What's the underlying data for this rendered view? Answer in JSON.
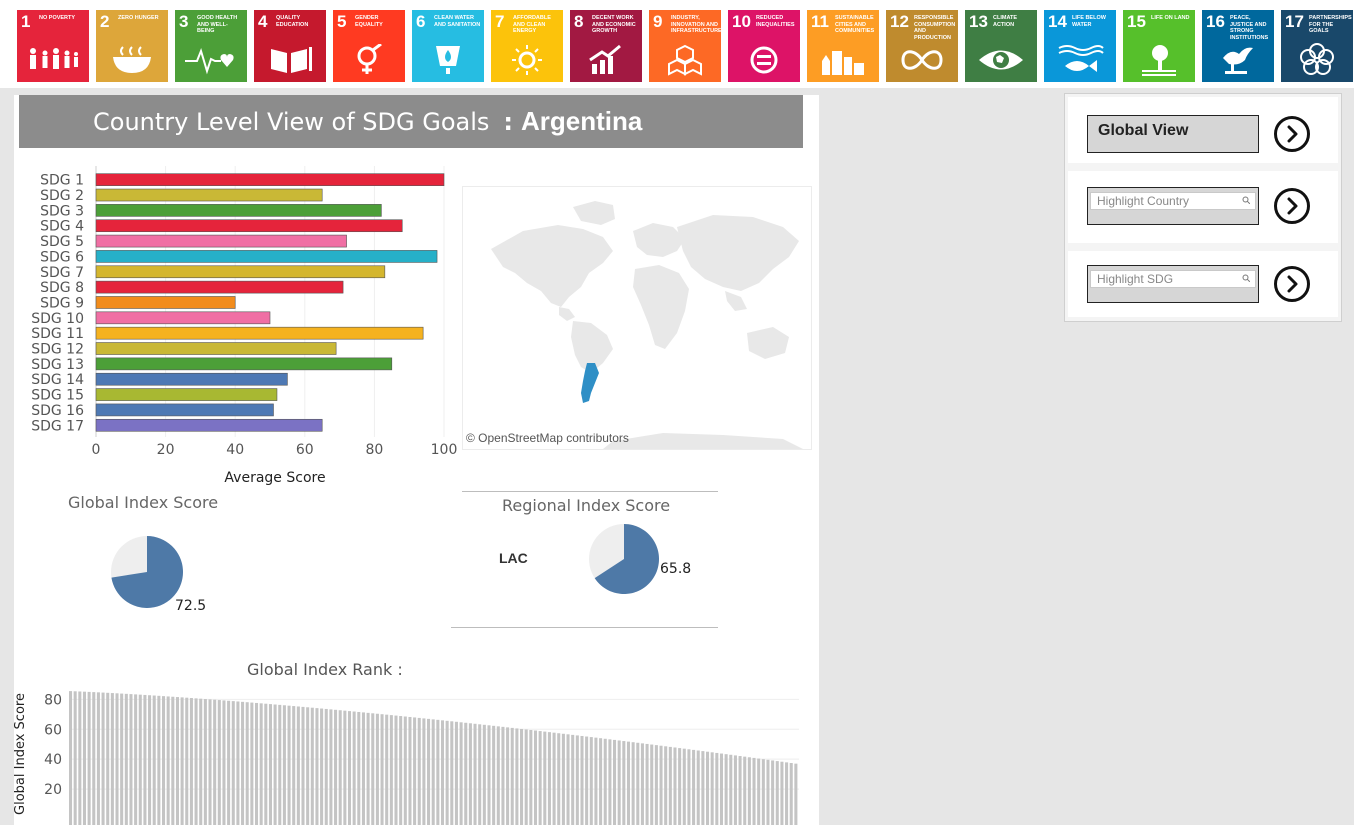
{
  "header": {
    "title": "Country Level View of SDG Goals",
    "separator": ":",
    "country": "Argentina"
  },
  "sdg_tiles": [
    {
      "num": "1",
      "label": "NO POVERTY",
      "color": "#e5243b",
      "icon": "people-icon"
    },
    {
      "num": "2",
      "label": "ZERO HUNGER",
      "color": "#dda63a",
      "icon": "bowl-icon"
    },
    {
      "num": "3",
      "label": "GOOD HEALTH AND WELL-BEING",
      "color": "#4c9f38",
      "icon": "heartbeat-icon"
    },
    {
      "num": "4",
      "label": "QUALITY EDUCATION",
      "color": "#c5192d",
      "icon": "book-icon"
    },
    {
      "num": "5",
      "label": "GENDER EQUALITY",
      "color": "#ff3a21",
      "icon": "gender-icon"
    },
    {
      "num": "6",
      "label": "CLEAN WATER AND SANITATION",
      "color": "#26bde2",
      "icon": "water-drop-icon"
    },
    {
      "num": "7",
      "label": "AFFORDABLE AND CLEAN ENERGY",
      "color": "#fcc30b",
      "icon": "sun-icon"
    },
    {
      "num": "8",
      "label": "DECENT WORK AND ECONOMIC GROWTH",
      "color": "#a21942",
      "icon": "growth-chart-icon"
    },
    {
      "num": "9",
      "label": "INDUSTRY, INNOVATION AND INFRASTRUCTURE",
      "color": "#fd6925",
      "icon": "cubes-icon"
    },
    {
      "num": "10",
      "label": "REDUCED INEQUALITIES",
      "color": "#dd1367",
      "icon": "equal-icon"
    },
    {
      "num": "11",
      "label": "SUSTAINABLE CITIES AND COMMUNITIES",
      "color": "#fd9d24",
      "icon": "city-icon"
    },
    {
      "num": "12",
      "label": "RESPONSIBLE CONSUMPTION AND PRODUCTION",
      "color": "#bf8b2e",
      "icon": "infinity-icon"
    },
    {
      "num": "13",
      "label": "CLIMATE ACTION",
      "color": "#3f7e44",
      "icon": "eye-globe-icon"
    },
    {
      "num": "14",
      "label": "LIFE BELOW WATER",
      "color": "#0a97d9",
      "icon": "fish-icon"
    },
    {
      "num": "15",
      "label": "LIFE ON LAND",
      "color": "#56c02b",
      "icon": "tree-icon"
    },
    {
      "num": "16",
      "label": "PEACE, JUSTICE AND STRONG INSTITUTIONS",
      "color": "#00689d",
      "icon": "dove-icon"
    },
    {
      "num": "17",
      "label": "PARTNERSHIPS FOR THE GOALS",
      "color": "#19486a",
      "icon": "rings-icon"
    }
  ],
  "chart_data": [
    {
      "type": "bar",
      "orientation": "horizontal",
      "title": "",
      "xlabel": "Average Score",
      "ylabel": "",
      "xlim": [
        0,
        100
      ],
      "xticks": [
        "0",
        "20",
        "40",
        "60",
        "80",
        "100"
      ],
      "grid": true,
      "categories": [
        "SDG 1",
        "SDG 2",
        "SDG 3",
        "SDG 4",
        "SDG 5",
        "SDG 6",
        "SDG 7",
        "SDG 8",
        "SDG 9",
        "SDG 10",
        "SDG 11",
        "SDG 12",
        "SDG 13",
        "SDG 14",
        "SDG 15",
        "SDG 16",
        "SDG 17"
      ],
      "values": [
        100,
        65,
        82,
        88,
        72,
        98,
        83,
        71,
        40,
        50,
        94,
        69,
        85,
        55,
        52,
        51,
        65
      ],
      "colors": [
        "#e5243b",
        "#c9b836",
        "#4c9f38",
        "#e5243b",
        "#f06fa4",
        "#26b0c8",
        "#d4b62e",
        "#e5243b",
        "#f28c1c",
        "#f06fa4",
        "#f5b21f",
        "#c9b836",
        "#4c9f38",
        "#4e79b4",
        "#a8b832",
        "#4e79b4",
        "#7b72c4"
      ]
    },
    {
      "type": "pie",
      "title": "Global Index Score",
      "value": 72.5,
      "value_label": "72.5",
      "colors": {
        "value": "#4e79a7",
        "rest": "#eeeeee"
      }
    },
    {
      "type": "pie",
      "title": "Regional Index Score",
      "region": "LAC",
      "value": 65.8,
      "value_label": "65.8",
      "colors": {
        "value": "#4e79a7",
        "rest": "#eeeeee"
      }
    },
    {
      "type": "bar",
      "title": "Global Index Rank :",
      "xlabel": "",
      "ylabel": "Global Index Score",
      "yticks": [
        "80",
        "60",
        "40",
        "20"
      ],
      "ylim": [
        0,
        95
      ],
      "grid": true,
      "start": 85.5,
      "end": 37,
      "count": 157,
      "bar_color": "#c4c4c4"
    }
  ],
  "map": {
    "credit": "© OpenStreetMap contributors",
    "highlight": "Argentina",
    "highlight_color": "#2f8fc6"
  },
  "controls": {
    "global_view_label": "Global View",
    "highlight_country_placeholder": "Highlight Country",
    "highlight_sdg_placeholder": "Highlight SDG"
  }
}
